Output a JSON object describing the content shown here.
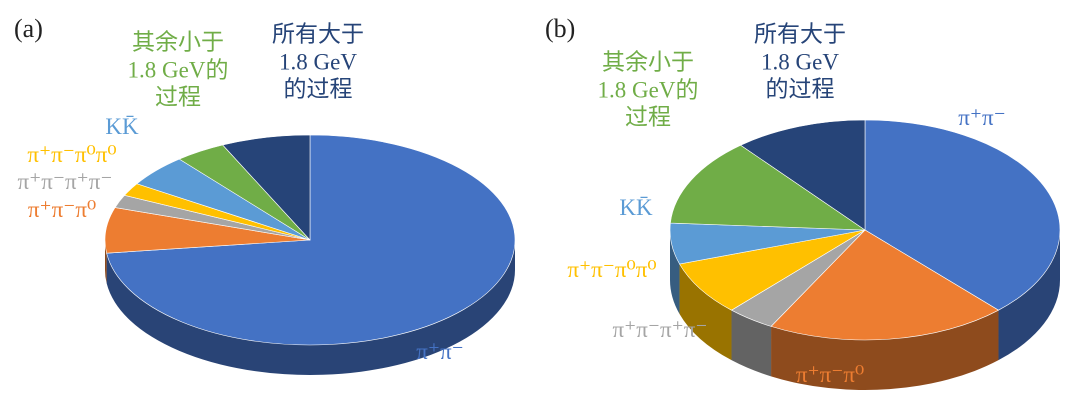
{
  "chart_data": [
    {
      "type": "pie",
      "panel_label": "(a)",
      "categories": [
        "π⁺π⁻",
        "π⁺π⁻π⁰",
        "π⁺π⁻π⁺π⁻",
        "π⁺π⁻π⁰π⁰",
        "KK̄",
        "其余小于\n1.8 GeV的\n过程",
        "所有大于\n1.8 GeV\n的过程"
      ],
      "values": [
        73,
        7,
        2,
        2,
        5,
        4,
        7
      ],
      "colors": [
        "#4472c4",
        "#ed7d31",
        "#a5a5a5",
        "#ffc000",
        "#5b9bd5",
        "#70ad47",
        "#264478"
      ]
    },
    {
      "type": "pie",
      "panel_label": "(b)",
      "categories": [
        "π⁺π⁻",
        "π⁺π⁻π⁰",
        "π⁺π⁻π⁺π⁻",
        "π⁺π⁻π⁰π⁰",
        "KK̄",
        "其余小于\n1.8 GeV的\n过程",
        "所有大于\n1.8 GeV\n的过程"
      ],
      "values": [
        38,
        20,
        4,
        8,
        6,
        13,
        11
      ],
      "colors": [
        "#4472c4",
        "#ed7d31",
        "#a5a5a5",
        "#ffc000",
        "#5b9bd5",
        "#70ad47",
        "#264478"
      ]
    }
  ]
}
